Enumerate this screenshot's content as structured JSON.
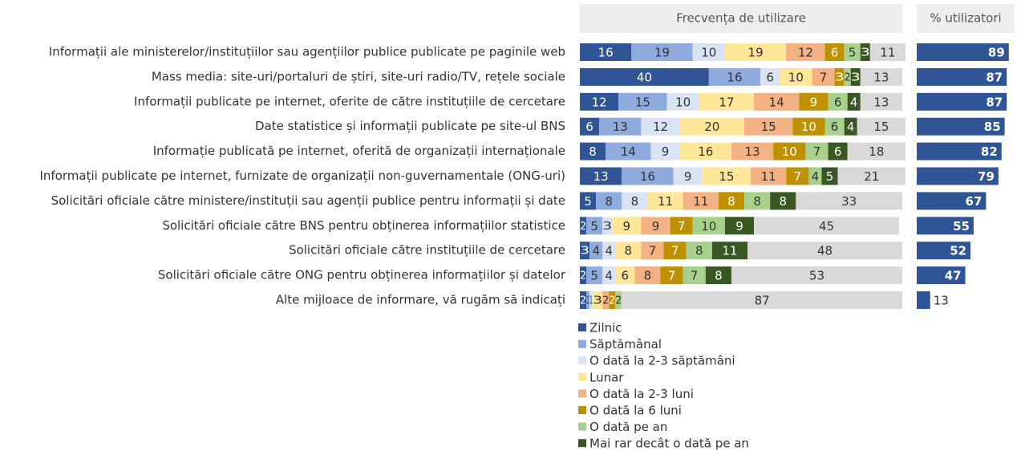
{
  "chart_data": [
    {
      "type": "stacked-bar-horizontal",
      "title": "Frecvența de utilizare",
      "xlim": [
        0,
        100
      ],
      "categories": [
        "Informații ale ministerelor/instituțiilor sau agențiilor publice publicate pe paginile web",
        "Mass media: site-uri/portaluri de știri, site-uri radio/TV, rețele sociale",
        "Informații publicate pe internet, oferite de către instituțiile de cercetare",
        "Date statistice și informații publicate pe site-ul BNS",
        "Informație publicată pe internet, oferită de organizații internaționale",
        "Informații publicate pe internet, furnizate de organizații non-guvernamentale (ONG-uri)",
        "Solicitări oficiale către ministere/instituții sau agenții publice pentru informații și date",
        "Solicitări oficiale către BNS pentru obținerea informațiilor statistice",
        "Solicitări oficiale către instituțiile de cercetare",
        "Solicitări oficiale către ONG pentru obținerea informațiilor și datelor",
        "Alte mijloace de informare, vă rugăm să indicați"
      ],
      "series": [
        {
          "name": "Zilnic",
          "color": "#2f5597",
          "values": [
            16,
            40,
            12,
            6,
            8,
            13,
            5,
            2,
            3,
            2,
            2
          ]
        },
        {
          "name": "Săptămânal",
          "color": "#8faadc",
          "values": [
            19,
            16,
            15,
            13,
            14,
            16,
            8,
            5,
            4,
            5,
            1
          ]
        },
        {
          "name": "O dată la 2-3 săptămâni",
          "color": "#dae3f3",
          "values": [
            10,
            6,
            10,
            12,
            9,
            9,
            8,
            3,
            4,
            4,
            1
          ]
        },
        {
          "name": "Lunar",
          "color": "#ffe699",
          "values": [
            19,
            10,
            17,
            20,
            16,
            15,
            11,
            9,
            8,
            6,
            3
          ]
        },
        {
          "name": "O dată la 2-3 luni",
          "color": "#f4b183",
          "values": [
            12,
            7,
            14,
            15,
            13,
            11,
            11,
            9,
            7,
            8,
            2
          ]
        },
        {
          "name": "O dată la 6 luni",
          "color": "#bf9000",
          "values": [
            6,
            3,
            9,
            10,
            10,
            7,
            8,
            7,
            7,
            7,
            2
          ]
        },
        {
          "name": "O dată pe an",
          "color": "#a9d18e",
          "values": [
            5,
            2,
            6,
            6,
            7,
            4,
            8,
            10,
            8,
            7,
            2
          ]
        },
        {
          "name": "Mai rar decât o dată pe an",
          "color": "#385723",
          "values": [
            3,
            3,
            4,
            4,
            6,
            5,
            8,
            9,
            11,
            8,
            0
          ]
        },
        {
          "color": "#d9d9d9",
          "values": [
            11,
            13,
            13,
            15,
            18,
            21,
            33,
            45,
            48,
            53,
            87
          ]
        }
      ]
    },
    {
      "type": "bar-horizontal",
      "title": "% utilizatori",
      "xlim": [
        0,
        100
      ],
      "color": "#2f5597",
      "values": [
        89,
        87,
        87,
        85,
        82,
        79,
        67,
        55,
        52,
        47,
        13
      ]
    }
  ]
}
